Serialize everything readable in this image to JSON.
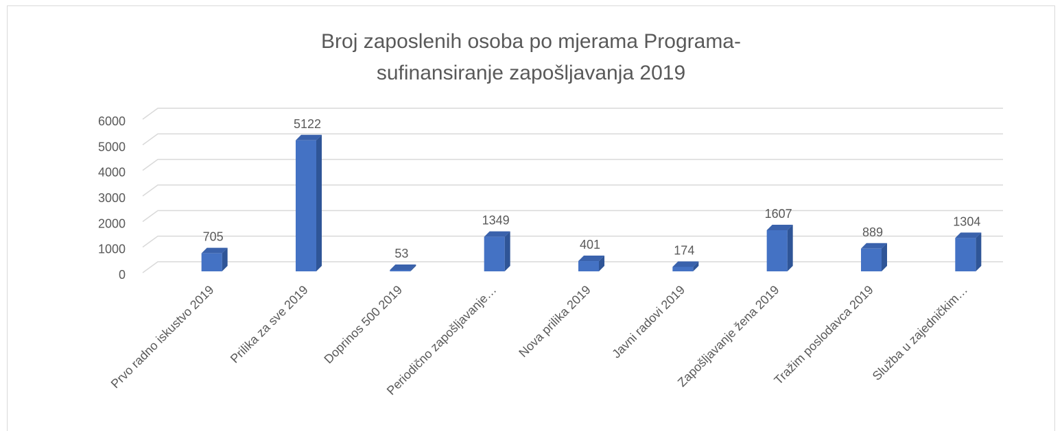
{
  "chart_data": {
    "type": "bar3d",
    "title": "Broj zaposlenih osoba po mjerama Programa-sufinansiranje zapošljavanja 2019",
    "categories": [
      "Prvo radno iskustvo 2019",
      "Prilika za sve 2019",
      "Doprinos 500 2019",
      "Periodično zapošljavanje…",
      "Nova prilika 2019",
      "Javni radovi 2019",
      "Zapošljavanje žena 2019",
      "Tražim poslodavca 2019",
      "Služba u zajedničkim…"
    ],
    "values": [
      705,
      5122,
      53,
      1349,
      401,
      174,
      1607,
      889,
      1304
    ],
    "color": "#4472c4",
    "ylim": [
      0,
      6000
    ],
    "yticks": [
      0,
      1000,
      2000,
      3000,
      4000,
      5000,
      6000
    ],
    "grid": true
  }
}
